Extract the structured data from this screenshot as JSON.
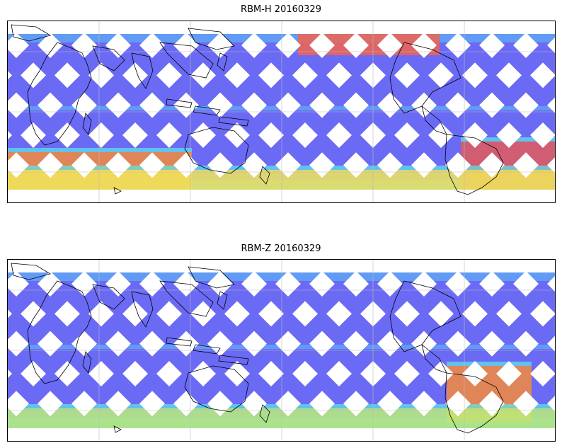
{
  "panels": [
    {
      "title": "RBM-H 20160329",
      "colormap": "jet",
      "hotspots": [
        {
          "region": "north-central",
          "value": "high",
          "color": "#f2644e"
        },
        {
          "region": "southwest",
          "value": "high",
          "color": "#f58a3c"
        },
        {
          "region": "south-america-southeast",
          "value": "very-high",
          "color": "#e35a5a"
        },
        {
          "region": "southern-band",
          "value": "medium",
          "color": "#f0e85a"
        }
      ]
    },
    {
      "title": "RBM-Z 20160329",
      "colormap": "jet",
      "hotspots": [
        {
          "region": "south-america-east",
          "value": "high",
          "color": "#f58a3c"
        },
        {
          "region": "southern-band",
          "value": "medium",
          "color": "#b9f07a"
        }
      ]
    }
  ],
  "colors": {
    "track_base": "#6a6af5",
    "track_light": "#5fa8f5",
    "track_cyan": "#5ee8e8",
    "coastline": "#000000",
    "grid": "#bbbbbb"
  }
}
